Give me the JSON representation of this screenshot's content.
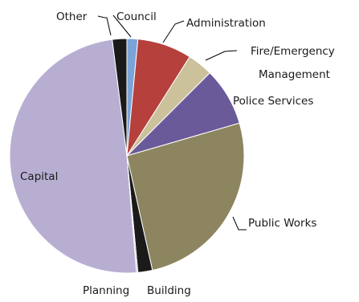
{
  "chart_data": {
    "type": "pie",
    "title": "",
    "start_angle_deg": 0,
    "direction": "clockwise",
    "slices": [
      {
        "label": "Council",
        "value": 1.5,
        "color": "#7aa3d8"
      },
      {
        "label": "Administration",
        "value": 7.5,
        "color": "#b5403c"
      },
      {
        "label": "Fire/Emergency Management",
        "value": 3.5,
        "color": "#cbc19a"
      },
      {
        "label": "Police Services",
        "value": 8.0,
        "color": "#6a5a99"
      },
      {
        "label": "Public Works",
        "value": 26.0,
        "color": "#8c8560"
      },
      {
        "label": "Building",
        "value": 2.0,
        "color": "#1a1a1a"
      },
      {
        "label": "Planning",
        "value": 0.2,
        "color": "#c1b7d7"
      },
      {
        "label": "Capital",
        "value": 49.3,
        "color": "#b8aed2"
      },
      {
        "label": "Other",
        "value": 2.0,
        "color": "#1a1a1a"
      }
    ],
    "labels": {
      "council": "Council",
      "administration": "Administration",
      "fire_line1": "Fire/Emergency",
      "fire_line2": "Management",
      "police": "Police Services",
      "public_works": "Public Works",
      "planning": "Planning",
      "building": "Building",
      "capital": "Capital",
      "other": "Other"
    }
  }
}
